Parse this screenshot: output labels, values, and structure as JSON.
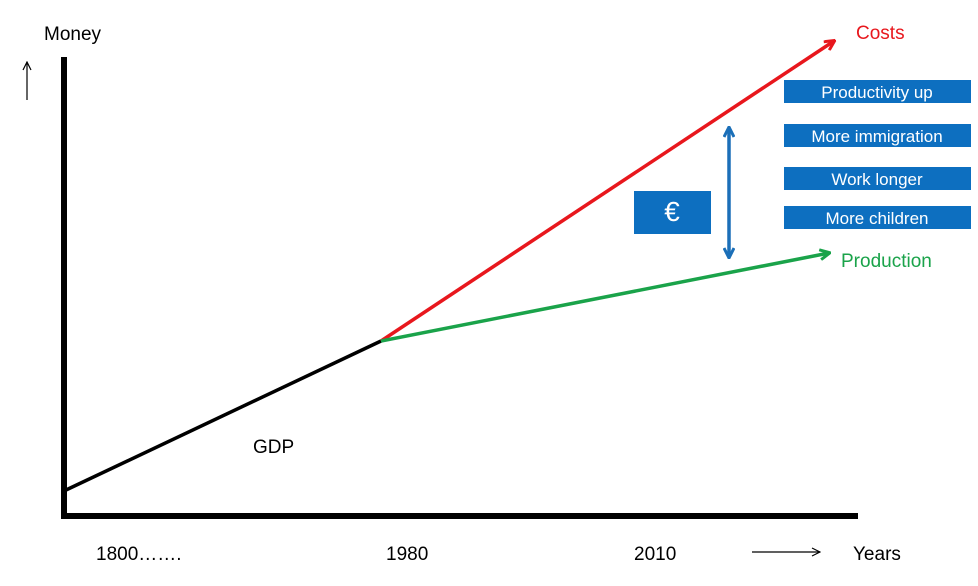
{
  "axes": {
    "y_label": "Money",
    "x_label": "Years",
    "x_ticks": [
      "1800…….",
      "1980",
      "2010"
    ]
  },
  "lines": {
    "gdp_label": "GDP",
    "costs_label": "Costs",
    "production_label": "Production"
  },
  "euro_symbol": "€",
  "boxes": [
    "Productivity up",
    "More immigration",
    "Work longer",
    "More children"
  ],
  "colors": {
    "axis": "#000000",
    "gdp": "#000000",
    "costs": "#e8171d",
    "production": "#1aa34a",
    "gap_arrow": "#1b6fb8",
    "box_fill": "#0d6fc0",
    "box_text": "#ffffff"
  }
}
